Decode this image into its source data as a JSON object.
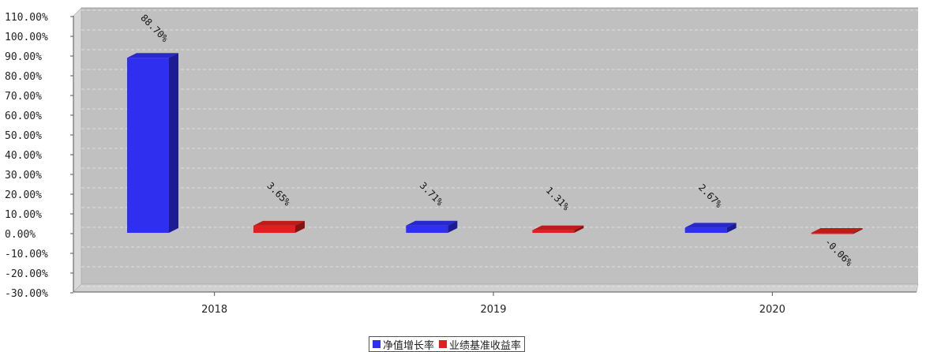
{
  "chart_data": {
    "type": "bar",
    "categories": [
      "2018",
      "2019",
      "2020"
    ],
    "series": [
      {
        "name": "净值增长率",
        "values": [
          88.7,
          3.71,
          2.67
        ],
        "labels": [
          "88.70%",
          "3.71%",
          "2.67%"
        ],
        "color": "#2f2ff0"
      },
      {
        "name": "业绩基准收益率",
        "values": [
          3.65,
          1.31,
          -0.06
        ],
        "labels": [
          "3.65%",
          "1.31%",
          "-0.06%"
        ],
        "color": "#e02020"
      }
    ],
    "yticks": [
      "110.00%",
      "100.00%",
      "90.00%",
      "80.00%",
      "70.00%",
      "60.00%",
      "50.00%",
      "40.00%",
      "30.00%",
      "20.00%",
      "10.00%",
      "0.00%",
      "-10.00%",
      "-20.00%",
      "-30.00%"
    ],
    "ylim": [
      -30,
      110
    ],
    "ystep": 10,
    "grid": true,
    "legend_position": "bottom-center",
    "plot_background": "#c0c0c0"
  }
}
